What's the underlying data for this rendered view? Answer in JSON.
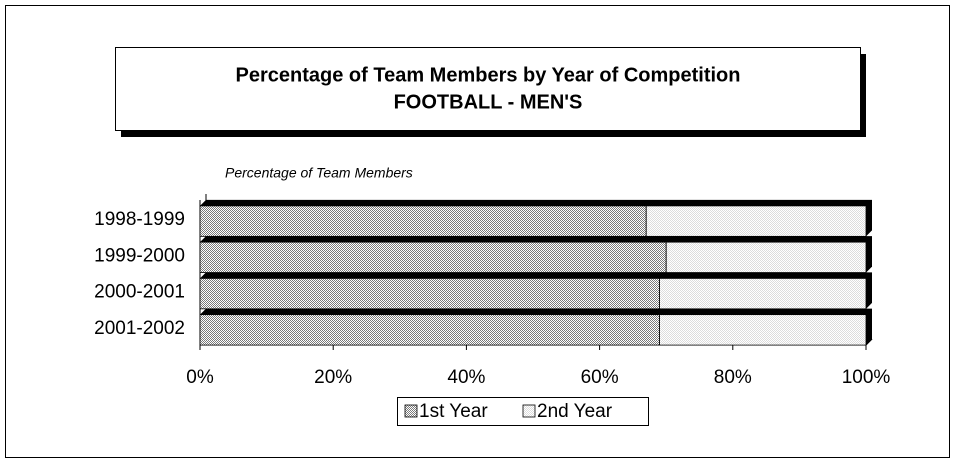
{
  "chart_data": {
    "type": "stacked_bar_horizontal",
    "title": "Percentage of Team Members by Year of Competition",
    "subtitle": "FOOTBALL - MEN'S",
    "axis_label": "Percentage of Team Members",
    "categories": [
      "1998-1999",
      "1999-2000",
      "2000-2001",
      "2001-2002"
    ],
    "series": [
      {
        "name": "1st Year",
        "color": "#7a7a7a",
        "values": [
          67,
          70,
          69,
          69
        ]
      },
      {
        "name": "2nd Year",
        "color": "#dcdcdc",
        "values": [
          33,
          30,
          31,
          31
        ]
      }
    ],
    "xlim": [
      0,
      100
    ],
    "xticks": [
      {
        "value": 0,
        "label": "0%"
      },
      {
        "value": 20,
        "label": "20%"
      },
      {
        "value": 40,
        "label": "40%"
      },
      {
        "value": 60,
        "label": "60%"
      },
      {
        "value": 80,
        "label": "80%"
      },
      {
        "value": 100,
        "label": "100%"
      }
    ],
    "legend": "bottom"
  }
}
